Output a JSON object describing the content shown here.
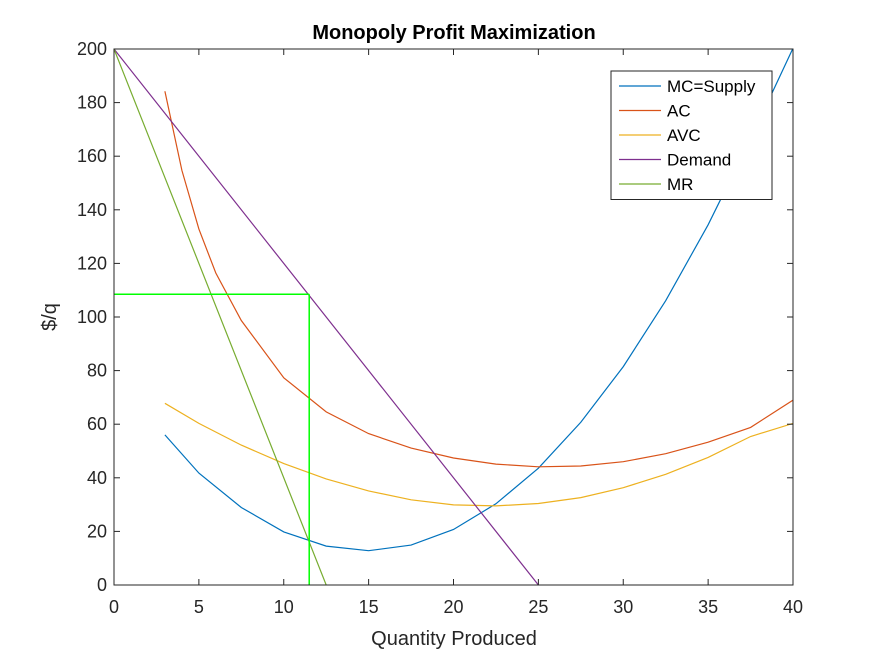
{
  "chart_data": {
    "type": "line",
    "title": "Monopoly Profit Maximization",
    "xlabel": "Quantity Produced",
    "ylabel": "$/q",
    "xlim": [
      0,
      40
    ],
    "ylim": [
      0,
      200
    ],
    "xticks": [
      0,
      5,
      10,
      15,
      20,
      25,
      30,
      35,
      40
    ],
    "yticks": [
      0,
      20,
      40,
      60,
      80,
      100,
      120,
      140,
      160,
      180,
      200
    ],
    "grid": false,
    "legend_position": "top-right",
    "series": [
      {
        "name": "MC=Supply",
        "color": "#0072BD",
        "x": [
          3,
          5,
          7.5,
          10,
          12.5,
          15,
          17.5,
          20,
          22.5,
          25,
          27.5,
          30,
          32.5,
          35,
          37.5,
          40
        ],
        "y": [
          56,
          41.75,
          28.9,
          19.8,
          14.5,
          12.8,
          14.9,
          20.7,
          30.3,
          43.6,
          60.7,
          81.5,
          106.1,
          134.4,
          166.5,
          200.3
        ]
      },
      {
        "name": "AC",
        "color": "#D95319",
        "x": [
          3,
          4,
          5,
          6,
          7.5,
          10,
          12.5,
          15,
          17.5,
          20,
          22.5,
          25,
          27.5,
          30,
          32.5,
          35,
          37.5,
          40
        ],
        "y": [
          184.2,
          154.7,
          132.8,
          116.4,
          98.7,
          77.3,
          64.6,
          56.5,
          51.1,
          47.4,
          45.1,
          44.1,
          44.4,
          46.0,
          49.0,
          53.3,
          58.8,
          69.0
        ]
      },
      {
        "name": "AVC",
        "color": "#EDB120",
        "x": [
          3,
          5,
          7.5,
          10,
          12.5,
          15,
          17.5,
          20,
          22.5,
          25,
          27.5,
          30,
          32.5,
          35,
          37.5,
          40
        ],
        "y": [
          67.8,
          60.3,
          52.2,
          45.3,
          39.6,
          35.1,
          31.8,
          29.9,
          29.5,
          30.4,
          32.6,
          36.3,
          41.3,
          47.6,
          55.4,
          60.3
        ]
      },
      {
        "name": "Demand",
        "color": "#7E2F8E",
        "x": [
          0,
          25
        ],
        "y": [
          200,
          0
        ]
      },
      {
        "name": "MR",
        "color": "#77AC30",
        "x": [
          0,
          12.5
        ],
        "y": [
          200,
          0
        ]
      }
    ],
    "annotations": {
      "optimum_lines": {
        "color": "#00FF00",
        "quantity": 11.5,
        "price": 108.5
      }
    }
  }
}
